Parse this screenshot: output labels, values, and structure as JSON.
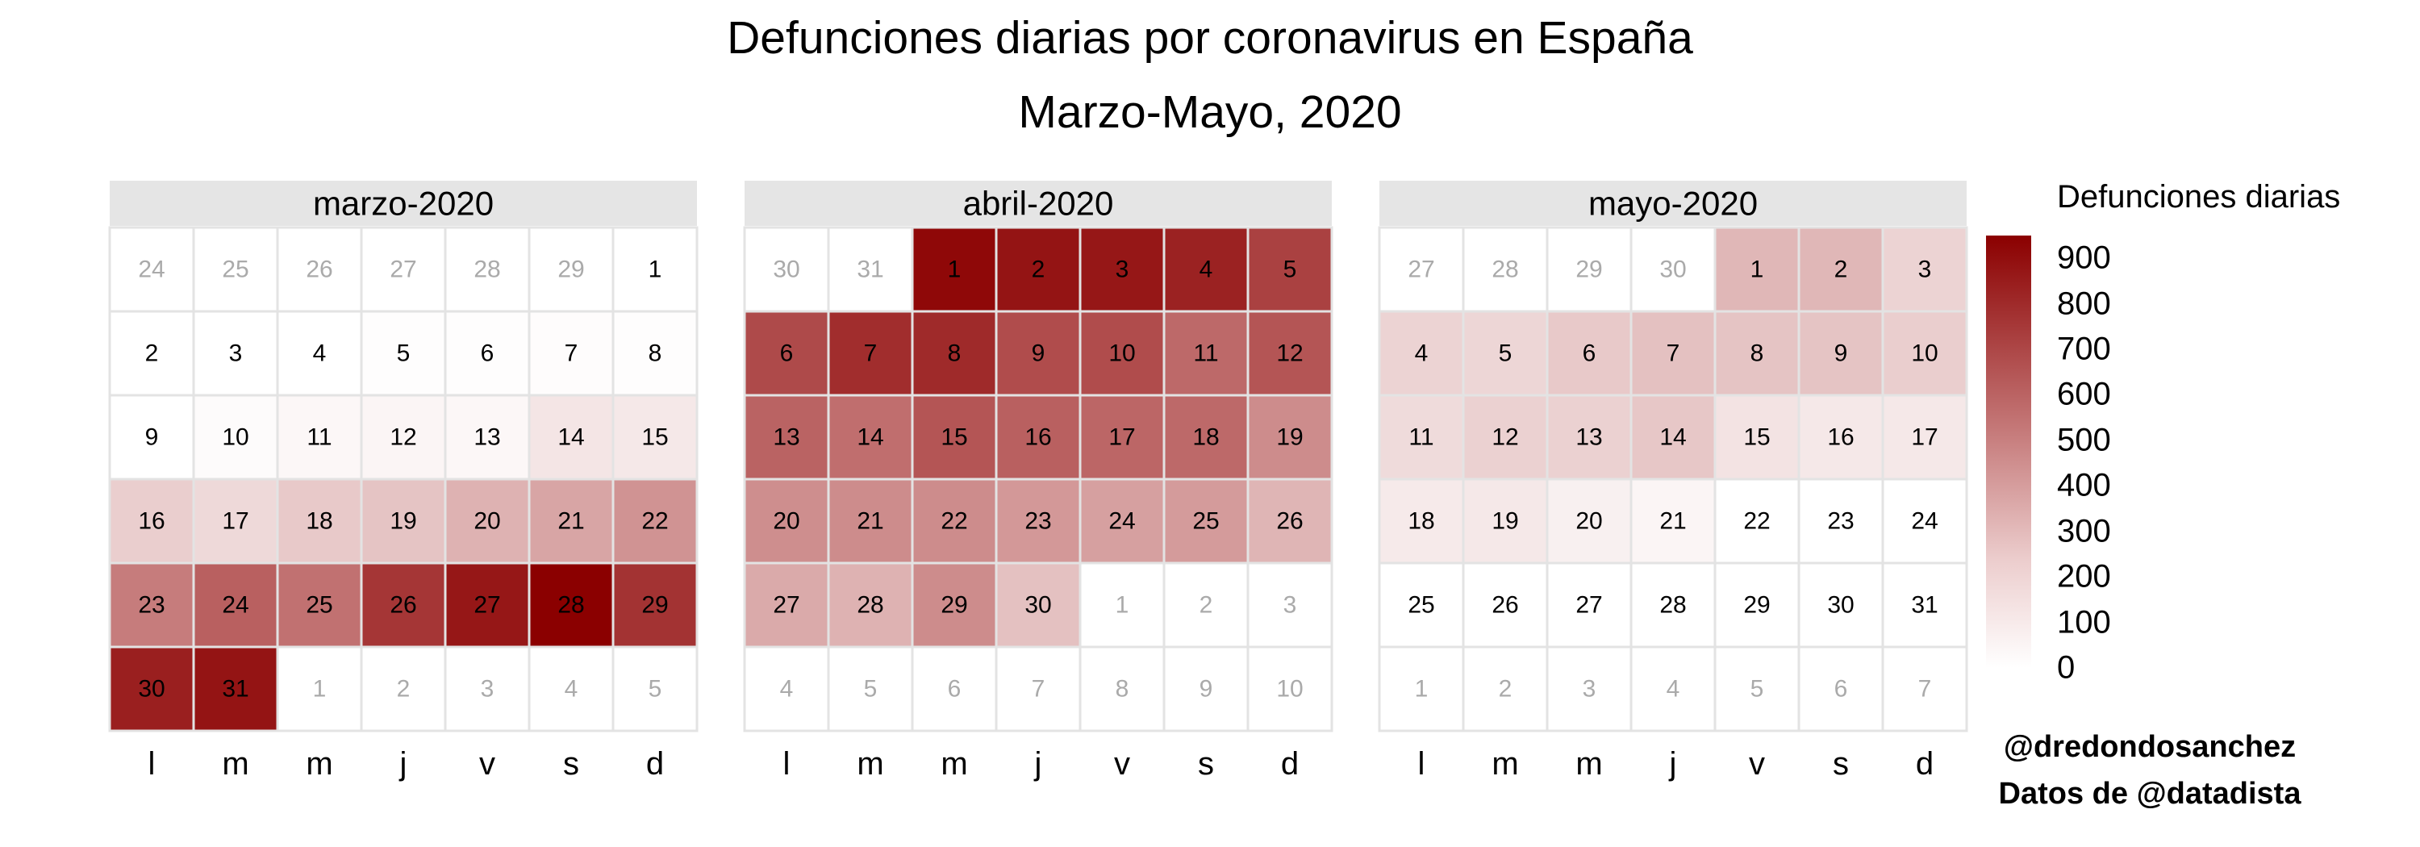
{
  "title": "Defunciones diarias por coronavirus en España",
  "subtitle": "Marzo-Mayo, 2020",
  "legend": {
    "title": "Defunciones diarias",
    "ticks": [
      0,
      100,
      200,
      300,
      400,
      500,
      600,
      700,
      800,
      900
    ],
    "min": 0,
    "max": 950,
    "colors": {
      "high": "#8b0000",
      "mid": "#c57979",
      "low": "#ffffff"
    }
  },
  "credit": {
    "author": "@dredondosanchez",
    "source": "Datos de @datadista"
  },
  "colors": {
    "panel_header": "#e5e5e5",
    "grid": "#e3e3e3",
    "text_in_month": "#000000",
    "text_out_month": "#aaaaaa"
  },
  "chart_data": {
    "type": "heatmap",
    "title": "Defunciones diarias por coronavirus en España",
    "subtitle": "Marzo-Mayo, 2020",
    "weekday_labels": [
      "l",
      "m",
      "m",
      "j",
      "v",
      "s",
      "d"
    ],
    "panels": [
      {
        "title": "marzo-2020",
        "leading_days": [
          24,
          25,
          26,
          27,
          28,
          29
        ],
        "days_in_month": 31,
        "trailing_days": [
          1,
          2,
          3,
          4,
          5
        ],
        "values": [
          0,
          0,
          1,
          0,
          6,
          7,
          11,
          7,
          1,
          15,
          30,
          40,
          30,
          100,
          90,
          190,
          150,
          210,
          230,
          300,
          350,
          420,
          510,
          610,
          550,
          760,
          870,
          950,
          770,
          840,
          880
        ]
      },
      {
        "title": "abril-2020",
        "leading_days": [
          30,
          31
        ],
        "days_in_month": 30,
        "trailing_days": [
          1,
          2,
          3,
          4,
          5,
          6,
          7,
          8,
          9,
          10
        ],
        "values": [
          920,
          880,
          870,
          830,
          720,
          690,
          790,
          800,
          680,
          680,
          580,
          650,
          600,
          560,
          650,
          610,
          590,
          580,
          450,
          440,
          450,
          450,
          400,
          370,
          390,
          290,
          330,
          300,
          450,
          240
        ]
      },
      {
        "title": "mayo-2020",
        "leading_days": [
          27,
          28,
          29,
          30
        ],
        "days_in_month": 31,
        "trailing_days": [
          1,
          2,
          3,
          4,
          5,
          6,
          7
        ],
        "values": [
          280,
          280,
          170,
          170,
          160,
          210,
          240,
          230,
          230,
          190,
          140,
          180,
          180,
          220,
          110,
          90,
          90,
          80,
          90,
          60,
          40,
          0,
          0,
          0,
          0,
          0,
          0,
          0,
          0,
          0,
          0
        ]
      }
    ]
  }
}
